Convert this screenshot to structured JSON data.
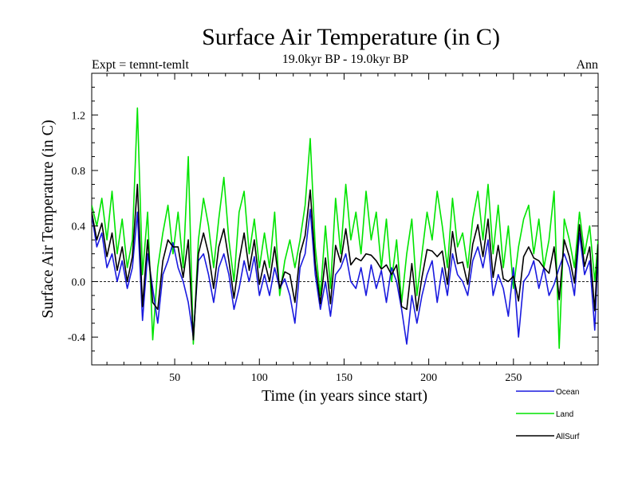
{
  "chart_data": {
    "type": "line",
    "title": "Surface Air Temperature (in C)",
    "subtitle": "19.0kyr BP - 19.0kyr BP",
    "experiment_label": "Expt = temnt-temlt",
    "season_label": "Ann",
    "xlabel": "Time (in years since start)",
    "ylabel": "Surface Air Temperature (in C)",
    "xlim": [
      1,
      300
    ],
    "ylim": [
      -0.6,
      1.5
    ],
    "x_ticks": [
      50,
      100,
      150,
      200,
      250
    ],
    "x_tick_labels": [
      "50",
      "100",
      "150",
      "200",
      "250"
    ],
    "y_ticks": [
      -0.4,
      0.0,
      0.4,
      0.8,
      1.2
    ],
    "y_tick_labels": [
      "-0.4",
      "0.0",
      "0.4",
      "0.8",
      "1.2"
    ],
    "zero_line": true,
    "legend_position": "bottom-right",
    "series": [
      {
        "name": "Ocean",
        "color": "#1a1adf",
        "x": [
          1,
          4,
          7,
          10,
          13,
          16,
          19,
          22,
          25,
          28,
          31,
          34,
          37,
          40,
          43,
          46,
          49,
          52,
          55,
          58,
          61,
          64,
          67,
          70,
          73,
          76,
          79,
          82,
          85,
          88,
          91,
          94,
          97,
          100,
          103,
          106,
          109,
          112,
          115,
          118,
          121,
          124,
          127,
          130,
          133,
          136,
          139,
          142,
          145,
          148,
          151,
          154,
          157,
          160,
          163,
          166,
          169,
          172,
          175,
          178,
          181,
          184,
          187,
          190,
          193,
          196,
          199,
          202,
          205,
          208,
          211,
          214,
          217,
          220,
          223,
          226,
          229,
          232,
          235,
          238,
          241,
          244,
          247,
          250,
          253,
          256,
          259,
          262,
          265,
          268,
          271,
          274,
          277,
          280,
          283,
          286,
          289,
          292,
          295,
          298,
          300
        ],
        "values": [
          0.48,
          0.25,
          0.35,
          0.1,
          0.2,
          0.0,
          0.15,
          -0.05,
          0.1,
          0.5,
          -0.28,
          0.2,
          -0.05,
          -0.3,
          0.05,
          0.15,
          0.28,
          0.1,
          0.0,
          -0.15,
          -0.4,
          0.15,
          0.2,
          0.05,
          -0.15,
          0.1,
          0.2,
          0.05,
          -0.2,
          -0.05,
          0.15,
          0.0,
          0.18,
          -0.1,
          0.05,
          -0.1,
          0.1,
          -0.05,
          0.02,
          -0.1,
          -0.3,
          0.1,
          0.2,
          0.52,
          0.05,
          -0.2,
          0.0,
          -0.25,
          0.05,
          0.1,
          0.2,
          0.0,
          -0.05,
          0.1,
          -0.1,
          0.12,
          -0.05,
          0.08,
          -0.15,
          0.1,
          0.0,
          -0.2,
          -0.45,
          -0.1,
          -0.3,
          -0.1,
          0.05,
          0.15,
          -0.15,
          0.1,
          -0.1,
          0.2,
          0.05,
          0.0,
          -0.1,
          0.15,
          0.25,
          0.1,
          0.3,
          -0.1,
          0.05,
          -0.05,
          -0.25,
          0.1,
          -0.4,
          0.0,
          0.05,
          0.15,
          -0.05,
          0.1,
          -0.1,
          -0.02,
          0.1,
          0.2,
          0.1,
          -0.1,
          0.35,
          0.05,
          0.15,
          -0.35,
          0.25
        ]
      },
      {
        "name": "Land",
        "color": "#00e400",
        "x": [
          1,
          4,
          7,
          10,
          13,
          16,
          19,
          22,
          25,
          28,
          31,
          34,
          37,
          40,
          43,
          46,
          49,
          52,
          55,
          58,
          61,
          64,
          67,
          70,
          73,
          76,
          79,
          82,
          85,
          88,
          91,
          94,
          97,
          100,
          103,
          106,
          109,
          112,
          115,
          118,
          121,
          124,
          127,
          130,
          133,
          136,
          139,
          142,
          145,
          148,
          151,
          154,
          157,
          160,
          163,
          166,
          169,
          172,
          175,
          178,
          181,
          184,
          187,
          190,
          193,
          196,
          199,
          202,
          205,
          208,
          211,
          214,
          217,
          220,
          223,
          226,
          229,
          232,
          235,
          238,
          241,
          244,
          247,
          250,
          253,
          256,
          259,
          262,
          265,
          268,
          271,
          274,
          277,
          280,
          283,
          286,
          289,
          292,
          295,
          298,
          300
        ],
        "values": [
          0.55,
          0.4,
          0.6,
          0.3,
          0.65,
          0.2,
          0.45,
          0.1,
          0.3,
          1.25,
          0.05,
          0.5,
          -0.42,
          0.1,
          0.35,
          0.55,
          0.2,
          0.5,
          0.1,
          0.9,
          -0.45,
          0.3,
          0.6,
          0.4,
          0.1,
          0.45,
          0.75,
          0.3,
          0.0,
          0.5,
          0.65,
          0.2,
          0.45,
          0.1,
          0.35,
          0.1,
          0.5,
          -0.1,
          0.15,
          0.3,
          0.1,
          0.3,
          0.55,
          1.03,
          0.25,
          -0.1,
          0.4,
          -0.05,
          0.6,
          0.2,
          0.7,
          0.3,
          0.5,
          0.2,
          0.65,
          0.3,
          0.5,
          0.1,
          0.45,
          0.0,
          0.3,
          -0.15,
          0.2,
          0.45,
          -0.1,
          0.2,
          0.5,
          0.3,
          0.65,
          0.4,
          0.1,
          0.6,
          0.25,
          0.35,
          0.1,
          0.45,
          0.65,
          0.3,
          0.7,
          0.2,
          0.55,
          0.1,
          0.4,
          -0.05,
          0.25,
          0.45,
          0.55,
          0.2,
          0.45,
          0.1,
          0.3,
          0.65,
          -0.48,
          0.45,
          0.3,
          0.1,
          0.5,
          0.2,
          0.4,
          0.0,
          0.3
        ]
      },
      {
        "name": "AllSurf",
        "color": "#000000",
        "x": [
          1,
          4,
          7,
          10,
          13,
          16,
          19,
          22,
          25,
          28,
          31,
          34,
          37,
          40,
          43,
          46,
          49,
          52,
          55,
          58,
          61,
          64,
          67,
          70,
          73,
          76,
          79,
          82,
          85,
          88,
          91,
          94,
          97,
          100,
          103,
          106,
          109,
          112,
          115,
          118,
          121,
          124,
          127,
          130,
          133,
          136,
          139,
          142,
          145,
          148,
          151,
          154,
          157,
          160,
          163,
          166,
          169,
          172,
          175,
          178,
          181,
          184,
          187,
          190,
          193,
          196,
          199,
          202,
          205,
          208,
          211,
          214,
          217,
          220,
          223,
          226,
          229,
          232,
          235,
          238,
          241,
          244,
          247,
          250,
          253,
          256,
          259,
          262,
          265,
          268,
          271,
          274,
          277,
          280,
          283,
          286,
          289,
          292,
          295,
          298,
          300
        ],
        "values": [
          0.5,
          0.3,
          0.42,
          0.18,
          0.35,
          0.08,
          0.25,
          0.0,
          0.18,
          0.7,
          -0.18,
          0.3,
          -0.15,
          -0.2,
          0.15,
          0.3,
          0.25,
          0.25,
          0.03,
          0.3,
          -0.42,
          0.2,
          0.35,
          0.2,
          -0.05,
          0.25,
          0.38,
          0.15,
          -0.12,
          0.15,
          0.35,
          0.08,
          0.3,
          -0.02,
          0.15,
          0.0,
          0.25,
          -0.05,
          0.07,
          0.05,
          -0.15,
          0.2,
          0.33,
          0.66,
          0.13,
          -0.16,
          0.17,
          -0.16,
          0.26,
          0.14,
          0.38,
          0.12,
          0.17,
          0.15,
          0.2,
          0.19,
          0.15,
          0.09,
          0.12,
          0.05,
          0.12,
          -0.18,
          -0.2,
          0.13,
          -0.21,
          0.03,
          0.23,
          0.22,
          0.18,
          0.22,
          -0.02,
          0.36,
          0.13,
          0.14,
          -0.02,
          0.27,
          0.41,
          0.18,
          0.45,
          0.03,
          0.26,
          0.02,
          0.0,
          0.04,
          -0.14,
          0.18,
          0.25,
          0.17,
          0.15,
          0.1,
          0.06,
          0.25,
          -0.13,
          0.3,
          0.18,
          -0.01,
          0.41,
          0.11,
          0.25,
          -0.21,
          0.27
        ]
      }
    ]
  }
}
